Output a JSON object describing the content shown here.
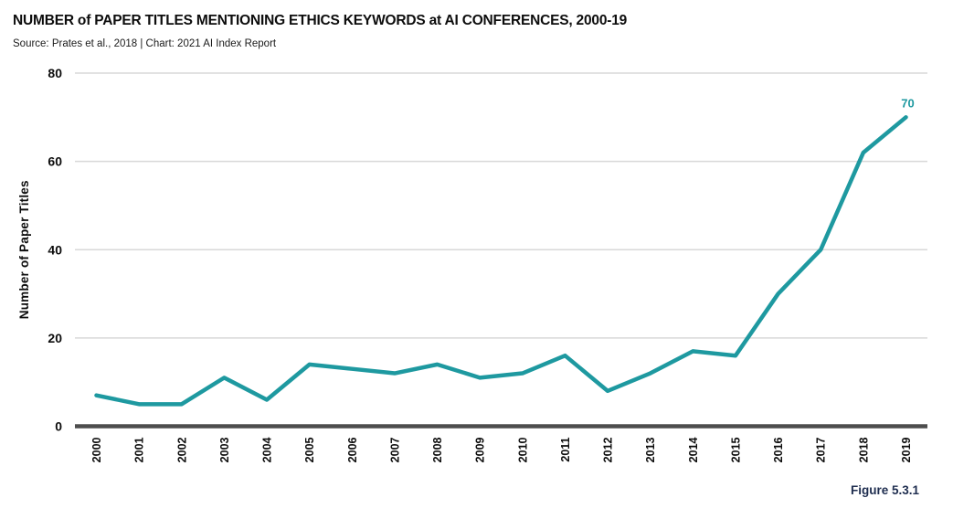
{
  "header": {
    "title": "NUMBER of PAPER TITLES MENTIONING ETHICS KEYWORDS at AI CONFERENCES, 2000-19",
    "source_line": "Source: Prates et al., 2018 | Chart: 2021 AI Index Report"
  },
  "figure_caption": "Figure 5.3.1",
  "colors": {
    "line": "#1e99a0",
    "grid": "#d8d8d8",
    "axis": "#4d4d4d",
    "text": "#0d0d0d",
    "annotation": "#1e99a0",
    "caption": "#1e2d4f"
  },
  "chart_data": {
    "type": "line",
    "title": "NUMBER of PAPER TITLES MENTIONING ETHICS KEYWORDS at AI CONFERENCES, 2000-19",
    "categories": [
      "2000",
      "2001",
      "2002",
      "2003",
      "2004",
      "2005",
      "2006",
      "2007",
      "2008",
      "2009",
      "2010",
      "2011",
      "2012",
      "2013",
      "2014",
      "2015",
      "2016",
      "2017",
      "2018",
      "2019"
    ],
    "series": [
      {
        "name": "Number of Paper Titles",
        "values": [
          7,
          5,
          5,
          11,
          6,
          14,
          13,
          12,
          14,
          11,
          12,
          16,
          8,
          12,
          17,
          16,
          30,
          40,
          62,
          70
        ]
      }
    ],
    "xlabel": "",
    "ylabel": "Number of Paper Titles",
    "ylim": [
      0,
      80
    ],
    "yticks": [
      0,
      20,
      40,
      60,
      80
    ],
    "grid": "horizontal",
    "legend": "none",
    "annotations": [
      {
        "x": "2019",
        "y": 70,
        "text": "70"
      }
    ]
  }
}
